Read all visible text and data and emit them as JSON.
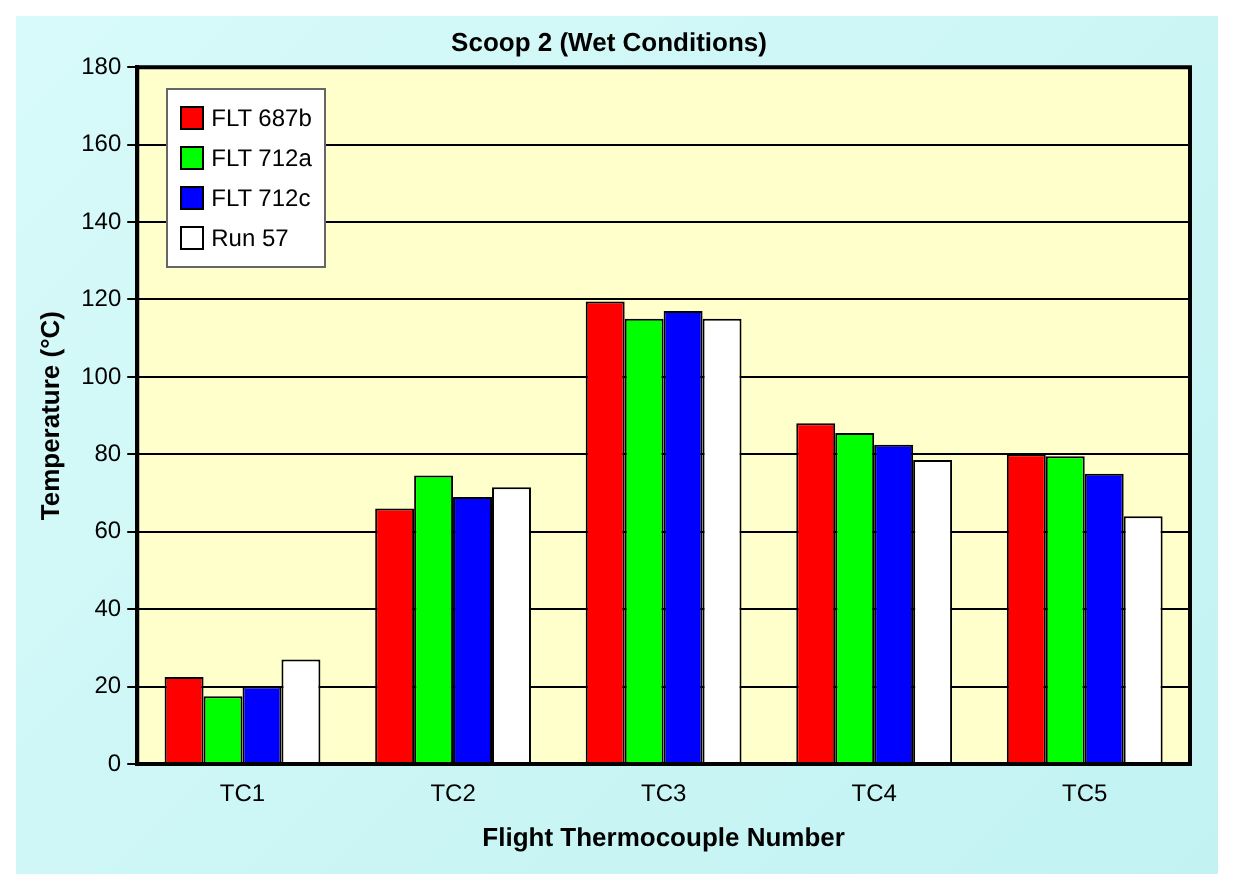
{
  "chart_data": {
    "type": "bar",
    "title": "Scoop 2 (Wet Conditions)",
    "xlabel": "Flight Thermocouple Number",
    "ylabel": "Temperature (°C)",
    "categories": [
      "TC1",
      "TC2",
      "TC3",
      "TC4",
      "TC5"
    ],
    "series": [
      {
        "name": "FLT 687b",
        "color": "#ff0000",
        "values": [
          22.5,
          66,
          119.5,
          88,
          80
        ]
      },
      {
        "name": "FLT 712a",
        "color": "#00ff00",
        "values": [
          17.5,
          74.5,
          115,
          85.5,
          79.5
        ]
      },
      {
        "name": "FLT 712c",
        "color": "#0000ff",
        "values": [
          20,
          69,
          117,
          82.5,
          75
        ]
      },
      {
        "name": "Run 57",
        "color": "#ffffff",
        "values": [
          27,
          71.5,
          115,
          78.5,
          64
        ]
      }
    ],
    "ylim": [
      0,
      180
    ],
    "yticks": [
      0,
      20,
      40,
      60,
      80,
      100,
      120,
      140,
      160,
      180
    ],
    "grid": "y",
    "legend": "top left"
  }
}
